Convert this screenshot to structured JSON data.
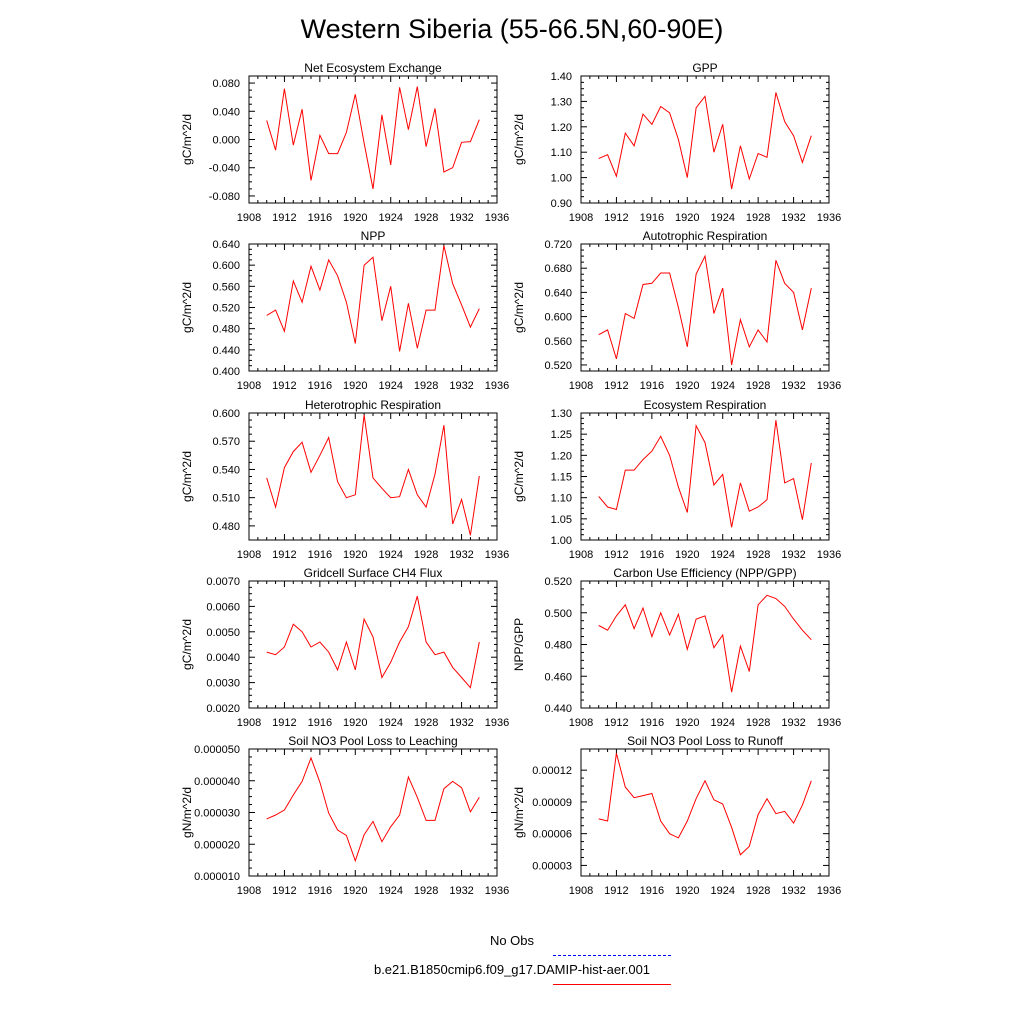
{
  "page": {
    "title": "Western Siberia (55-66.5N,60-90E)"
  },
  "legend": {
    "items": [
      {
        "label": "No Obs",
        "color": "#0000ff",
        "style": "dashed"
      },
      {
        "label": "b.e21.B1850cmip6.f09_g17.DAMIP-hist-aer.001",
        "color": "#ff0000",
        "style": "solid"
      }
    ]
  },
  "chart_data": [
    {
      "type": "line",
      "title": "Net Ecosystem Exchange",
      "ylabel": "gC/m^2/d",
      "xlim": [
        1908,
        1936
      ],
      "ylim": [
        -0.09,
        0.09
      ],
      "xticks": [
        "1908",
        "1912",
        "1916",
        "1920",
        "1924",
        "1928",
        "1932",
        "1936"
      ],
      "yticks": [
        -0.08,
        -0.04,
        0.0,
        0.04,
        0.08
      ],
      "ytick_labels": [
        "-0.080",
        "-0.040",
        "0.000",
        "0.040",
        "0.080"
      ],
      "x": [
        1910,
        1911,
        1912,
        1913,
        1914,
        1915,
        1916,
        1917,
        1918,
        1919,
        1920,
        1921,
        1922,
        1923,
        1924,
        1925,
        1926,
        1927,
        1928,
        1929,
        1930,
        1931,
        1932,
        1933,
        1934
      ],
      "series": [
        {
          "color": "#ff0000",
          "values": [
            0.027,
            -0.015,
            0.072,
            -0.008,
            0.043,
            -0.058,
            0.006,
            -0.02,
            -0.02,
            0.01,
            0.064,
            -0.005,
            -0.07,
            0.035,
            -0.036,
            0.074,
            0.014,
            0.075,
            -0.01,
            0.044,
            -0.046,
            -0.04,
            -0.004,
            -0.003,
            0.028
          ]
        }
      ]
    },
    {
      "type": "line",
      "title": "GPP",
      "ylabel": "gC/m^2/d",
      "xlim": [
        1908,
        1936
      ],
      "ylim": [
        0.9,
        1.4
      ],
      "xticks": [
        "1908",
        "1912",
        "1916",
        "1920",
        "1924",
        "1928",
        "1932",
        "1936"
      ],
      "yticks": [
        0.9,
        1.0,
        1.1,
        1.2,
        1.3,
        1.4
      ],
      "ytick_labels": [
        "0.90",
        "1.00",
        "1.10",
        "1.20",
        "1.30",
        "1.40"
      ],
      "x": [
        1910,
        1911,
        1912,
        1913,
        1914,
        1915,
        1916,
        1917,
        1918,
        1919,
        1920,
        1921,
        1922,
        1923,
        1924,
        1925,
        1926,
        1927,
        1928,
        1929,
        1930,
        1931,
        1932,
        1933,
        1934
      ],
      "series": [
        {
          "color": "#ff0000",
          "values": [
            1.075,
            1.09,
            1.005,
            1.175,
            1.125,
            1.25,
            1.21,
            1.28,
            1.255,
            1.15,
            1.0,
            1.275,
            1.32,
            1.1,
            1.21,
            0.955,
            1.125,
            0.995,
            1.095,
            1.08,
            1.335,
            1.22,
            1.165,
            1.06,
            1.165
          ]
        }
      ]
    },
    {
      "type": "line",
      "title": "NPP",
      "ylabel": "gC/m^2/d",
      "xlim": [
        1908,
        1936
      ],
      "ylim": [
        0.4,
        0.64
      ],
      "xticks": [
        "1908",
        "1912",
        "1916",
        "1920",
        "1924",
        "1928",
        "1932",
        "1936"
      ],
      "yticks": [
        0.4,
        0.44,
        0.48,
        0.52,
        0.56,
        0.6,
        0.64
      ],
      "ytick_labels": [
        "0.400",
        "0.440",
        "0.480",
        "0.520",
        "0.560",
        "0.600",
        "0.640"
      ],
      "x": [
        1910,
        1911,
        1912,
        1913,
        1914,
        1915,
        1916,
        1917,
        1918,
        1919,
        1920,
        1921,
        1922,
        1923,
        1924,
        1925,
        1926,
        1927,
        1928,
        1929,
        1930,
        1931,
        1932,
        1933,
        1934
      ],
      "series": [
        {
          "color": "#ff0000",
          "values": [
            0.505,
            0.515,
            0.475,
            0.57,
            0.53,
            0.598,
            0.553,
            0.61,
            0.58,
            0.53,
            0.452,
            0.6,
            0.615,
            0.495,
            0.56,
            0.437,
            0.528,
            0.443,
            0.515,
            0.515,
            0.637,
            0.565,
            0.525,
            0.483,
            0.518
          ]
        }
      ]
    },
    {
      "type": "line",
      "title": "Autotrophic Respiration",
      "ylabel": "gC/m^2/d",
      "xlim": [
        1908,
        1936
      ],
      "ylim": [
        0.51,
        0.72
      ],
      "xticks": [
        "1908",
        "1912",
        "1916",
        "1920",
        "1924",
        "1928",
        "1932",
        "1936"
      ],
      "yticks": [
        0.52,
        0.56,
        0.6,
        0.64,
        0.68,
        0.72
      ],
      "ytick_labels": [
        "0.520",
        "0.560",
        "0.600",
        "0.640",
        "0.680",
        "0.720"
      ],
      "x": [
        1910,
        1911,
        1912,
        1913,
        1914,
        1915,
        1916,
        1917,
        1918,
        1919,
        1920,
        1921,
        1922,
        1923,
        1924,
        1925,
        1926,
        1927,
        1928,
        1929,
        1930,
        1931,
        1932,
        1933,
        1934
      ],
      "series": [
        {
          "color": "#ff0000",
          "values": [
            0.57,
            0.578,
            0.53,
            0.605,
            0.597,
            0.653,
            0.655,
            0.672,
            0.672,
            0.615,
            0.55,
            0.67,
            0.7,
            0.605,
            0.647,
            0.52,
            0.595,
            0.55,
            0.578,
            0.558,
            0.693,
            0.655,
            0.64,
            0.578,
            0.647
          ]
        }
      ]
    },
    {
      "type": "line",
      "title": "Heterotrophic Respiration",
      "ylabel": "gC/m^2/d",
      "xlim": [
        1908,
        1936
      ],
      "ylim": [
        0.465,
        0.6
      ],
      "xticks": [
        "1908",
        "1912",
        "1916",
        "1920",
        "1924",
        "1928",
        "1932",
        "1936"
      ],
      "yticks": [
        0.48,
        0.51,
        0.54,
        0.57,
        0.6
      ],
      "ytick_labels": [
        "0.480",
        "0.510",
        "0.540",
        "0.570",
        "0.600"
      ],
      "x": [
        1910,
        1911,
        1912,
        1913,
        1914,
        1915,
        1916,
        1917,
        1918,
        1919,
        1920,
        1921,
        1922,
        1923,
        1924,
        1925,
        1926,
        1927,
        1928,
        1929,
        1930,
        1931,
        1932,
        1933,
        1934
      ],
      "series": [
        {
          "color": "#ff0000",
          "values": [
            0.531,
            0.5,
            0.542,
            0.559,
            0.569,
            0.537,
            0.555,
            0.574,
            0.527,
            0.51,
            0.513,
            0.598,
            0.531,
            0.52,
            0.51,
            0.511,
            0.54,
            0.513,
            0.5,
            0.535,
            0.587,
            0.482,
            0.508,
            0.47,
            0.533
          ]
        }
      ]
    },
    {
      "type": "line",
      "title": "Ecosystem Respiration",
      "ylabel": "gC/m^2/d",
      "xlim": [
        1908,
        1936
      ],
      "ylim": [
        1.0,
        1.3
      ],
      "xticks": [
        "1908",
        "1912",
        "1916",
        "1920",
        "1924",
        "1928",
        "1932",
        "1936"
      ],
      "yticks": [
        1.0,
        1.05,
        1.1,
        1.15,
        1.2,
        1.25,
        1.3
      ],
      "ytick_labels": [
        "1.00",
        "1.05",
        "1.10",
        "1.15",
        "1.20",
        "1.25",
        "1.30"
      ],
      "x": [
        1910,
        1911,
        1912,
        1913,
        1914,
        1915,
        1916,
        1917,
        1918,
        1919,
        1920,
        1921,
        1922,
        1923,
        1924,
        1925,
        1926,
        1927,
        1928,
        1929,
        1930,
        1931,
        1932,
        1933,
        1934
      ],
      "series": [
        {
          "color": "#ff0000",
          "values": [
            1.103,
            1.078,
            1.072,
            1.165,
            1.165,
            1.19,
            1.21,
            1.245,
            1.2,
            1.125,
            1.065,
            1.27,
            1.23,
            1.13,
            1.155,
            1.03,
            1.135,
            1.068,
            1.078,
            1.095,
            1.283,
            1.135,
            1.145,
            1.048,
            1.182
          ]
        }
      ]
    },
    {
      "type": "line",
      "title": "Gridcell Surface CH4 Flux",
      "ylabel": "gC/m^2/d",
      "xlim": [
        1908,
        1936
      ],
      "ylim": [
        0.002,
        0.007
      ],
      "xticks": [
        "1908",
        "1912",
        "1916",
        "1920",
        "1924",
        "1928",
        "1932",
        "1936"
      ],
      "yticks": [
        0.002,
        0.003,
        0.004,
        0.005,
        0.006,
        0.007
      ],
      "ytick_labels": [
        "0.0020",
        "0.0030",
        "0.0040",
        "0.0050",
        "0.0060",
        "0.0070"
      ],
      "x": [
        1910,
        1911,
        1912,
        1913,
        1914,
        1915,
        1916,
        1917,
        1918,
        1919,
        1920,
        1921,
        1922,
        1923,
        1924,
        1925,
        1926,
        1927,
        1928,
        1929,
        1930,
        1931,
        1932,
        1933,
        1934
      ],
      "series": [
        {
          "color": "#ff0000",
          "values": [
            0.0042,
            0.0041,
            0.0044,
            0.0053,
            0.005,
            0.0044,
            0.0046,
            0.0042,
            0.0035,
            0.0046,
            0.0035,
            0.0055,
            0.0048,
            0.0032,
            0.0038,
            0.0046,
            0.0052,
            0.0064,
            0.0046,
            0.0041,
            0.0042,
            0.0036,
            0.0032,
            0.0028,
            0.0046
          ]
        }
      ]
    },
    {
      "type": "line",
      "title": "Carbon Use Efficiency (NPP/GPP)",
      "ylabel": "NPP/GPP",
      "xlim": [
        1908,
        1936
      ],
      "ylim": [
        0.44,
        0.52
      ],
      "xticks": [
        "1908",
        "1912",
        "1916",
        "1920",
        "1924",
        "1928",
        "1932",
        "1936"
      ],
      "yticks": [
        0.44,
        0.46,
        0.48,
        0.5,
        0.52
      ],
      "ytick_labels": [
        "0.440",
        "0.460",
        "0.480",
        "0.500",
        "0.520"
      ],
      "x": [
        1910,
        1911,
        1912,
        1913,
        1914,
        1915,
        1916,
        1917,
        1918,
        1919,
        1920,
        1921,
        1922,
        1923,
        1924,
        1925,
        1926,
        1927,
        1928,
        1929,
        1930,
        1931,
        1932,
        1933,
        1934
      ],
      "series": [
        {
          "color": "#ff0000",
          "values": [
            0.492,
            0.489,
            0.498,
            0.505,
            0.49,
            0.503,
            0.485,
            0.5,
            0.486,
            0.499,
            0.477,
            0.496,
            0.498,
            0.478,
            0.486,
            0.45,
            0.479,
            0.463,
            0.505,
            0.511,
            0.509,
            0.504,
            0.496,
            0.489,
            0.483
          ]
        }
      ]
    },
    {
      "type": "line",
      "title": "Soil NO3 Pool Loss to Leaching",
      "ylabel": "gN/m^2/d",
      "xlim": [
        1908,
        1936
      ],
      "ylim": [
        1e-05,
        5e-05
      ],
      "xticks": [
        "1908",
        "1912",
        "1916",
        "1920",
        "1924",
        "1928",
        "1932",
        "1936"
      ],
      "yticks": [
        1e-05,
        2e-05,
        3e-05,
        4e-05,
        5e-05
      ],
      "ytick_labels": [
        "0.000010",
        "0.000020",
        "0.000030",
        "0.000040",
        "0.000050"
      ],
      "x": [
        1910,
        1911,
        1912,
        1913,
        1914,
        1915,
        1916,
        1917,
        1918,
        1919,
        1920,
        1921,
        1922,
        1923,
        1924,
        1925,
        1926,
        1927,
        1928,
        1929,
        1930,
        1931,
        1932,
        1933,
        1934
      ],
      "series": [
        {
          "color": "#ff0000",
          "values": [
            2.8e-05,
            2.92e-05,
            3.08e-05,
            3.55e-05,
            3.98e-05,
            4.72e-05,
            3.95e-05,
            2.98e-05,
            2.45e-05,
            2.28e-05,
            1.48e-05,
            2.3e-05,
            2.72e-05,
            2.08e-05,
            2.55e-05,
            2.92e-05,
            4.12e-05,
            3.48e-05,
            2.75e-05,
            2.75e-05,
            3.75e-05,
            3.98e-05,
            3.78e-05,
            3.02e-05,
            3.48e-05
          ]
        }
      ]
    },
    {
      "type": "line",
      "title": "Soil NO3 Pool Loss to Runoff",
      "ylabel": "gN/m^2/d",
      "xlim": [
        1908,
        1936
      ],
      "ylim": [
        2e-05,
        0.00014
      ],
      "xticks": [
        "1908",
        "1912",
        "1916",
        "1920",
        "1924",
        "1928",
        "1932",
        "1936"
      ],
      "yticks": [
        3e-05,
        6e-05,
        9e-05,
        0.00012
      ],
      "ytick_labels": [
        "0.00003",
        "0.00006",
        "0.00009",
        "0.00012"
      ],
      "x": [
        1910,
        1911,
        1912,
        1913,
        1914,
        1915,
        1916,
        1917,
        1918,
        1919,
        1920,
        1921,
        1922,
        1923,
        1924,
        1925,
        1926,
        1927,
        1928,
        1929,
        1930,
        1931,
        1932,
        1933,
        1934
      ],
      "series": [
        {
          "color": "#ff0000",
          "values": [
            7.4e-05,
            7.2e-05,
            0.000136,
            0.000104,
            9.4e-05,
            9.6e-05,
            9.8e-05,
            7.2e-05,
            6e-05,
            5.6e-05,
            7.2e-05,
            9.3e-05,
            0.00011,
            9.2e-05,
            8.8e-05,
            6.6e-05,
            4e-05,
            4.8e-05,
            7.8e-05,
            9.3e-05,
            7.9e-05,
            8.1e-05,
            7e-05,
            8.7e-05,
            0.00011
          ]
        }
      ]
    }
  ]
}
